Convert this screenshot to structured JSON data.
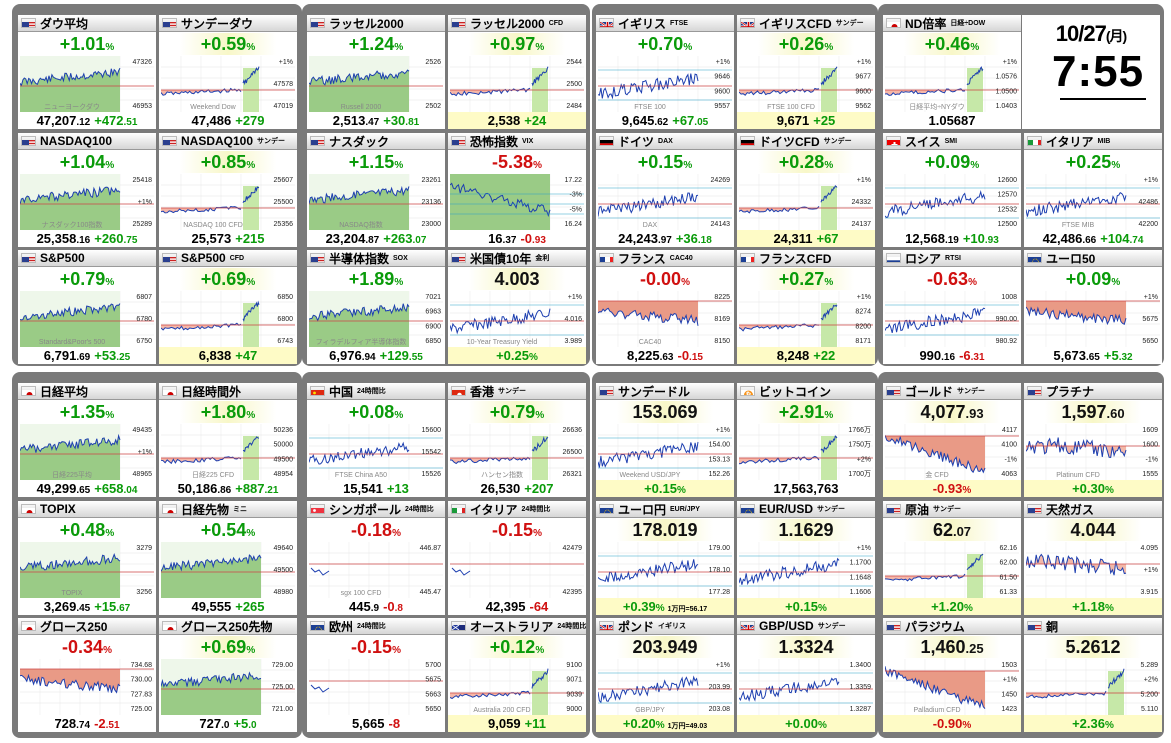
{
  "clock": {
    "date": "10/27",
    "dow": "(月)",
    "time": "7:55"
  },
  "tiles": [
    {
      "name": "ダウ平均",
      "flag": "us",
      "change": "+1.01",
      "unit": "%",
      "trend": "up",
      "ticks": [
        "47326",
        "46953"
      ],
      "wm": "ニューヨークダウ",
      "price": "47,207",
      "dec": ".12",
      "chg": "+472",
      "chgdec": ".51",
      "chgdir": "u"
    },
    {
      "name": "サンデーダウ",
      "flag": "us",
      "change": "+0.59",
      "unit": "%",
      "trend": "up",
      "hl": true,
      "style": "sunday",
      "ticks": [
        "+1%",
        "47578",
        "47019"
      ],
      "wm": "Weekend Dow",
      "price": "47,486",
      "dec": "",
      "chg": "+279",
      "chgdec": "",
      "chgdir": "u"
    },
    {
      "name": "ラッセル2000",
      "flag": "us",
      "change": "+1.24",
      "unit": "%",
      "trend": "up",
      "ticks": [
        "2526",
        "2502"
      ],
      "wm": "Russell 2000",
      "price": "2,513",
      "dec": ".47",
      "chg": "+30",
      "chgdec": ".81",
      "chgdir": "u"
    },
    {
      "name": "ラッセル2000",
      "sub": "CFD",
      "flag": "us",
      "change": "+0.97",
      "unit": "%",
      "trend": "up",
      "hl": true,
      "style": "cfdup",
      "ticks": [
        "2544",
        "2500",
        "2484"
      ],
      "wm": "",
      "price": "2,538",
      "dec": "",
      "chg": "+24",
      "chgdec": "",
      "chgdir": "u",
      "footyl": true
    },
    {
      "name": "イギリス",
      "sub": "FTSE",
      "flag": "uk",
      "change": "+0.70",
      "unit": "%",
      "trend": "up",
      "style": "line",
      "ticks": [
        "+1%",
        "9646",
        "9600",
        "9557"
      ],
      "wm": "FTSE 100",
      "price": "9,645",
      "dec": ".62",
      "chg": "+67",
      "chgdec": ".05",
      "chgdir": "u"
    },
    {
      "name": "イギリスCFD",
      "sub": "サンデー",
      "flag": "uk",
      "change": "+0.26",
      "unit": "%",
      "trend": "up",
      "hl": true,
      "style": "sunday",
      "ticks": [
        "+1%",
        "9677",
        "9600",
        "9562"
      ],
      "wm": "FTSE 100 CFD",
      "price": "9,671",
      "dec": "",
      "chg": "+25",
      "chgdec": "",
      "chgdir": "u",
      "footyl": true
    },
    {
      "name": "ND倍率",
      "sub": "日経÷DOW",
      "flag": "jp",
      "change": "+0.46",
      "unit": "%",
      "trend": "up",
      "hl": true,
      "style": "sunday",
      "ticks": [
        "+1%",
        "1.0576",
        "1.0500",
        "1.0403"
      ],
      "wm": "日経平均÷NYダウ",
      "price": "1.05687",
      "dec": "",
      "chg": "",
      "chgdec": "",
      "chgdir": "u"
    },
    {
      "name": "NASDAQ100",
      "flag": "us",
      "change": "+1.04",
      "unit": "%",
      "trend": "up",
      "ticks": [
        "25418",
        "+1%",
        "25289"
      ],
      "wm": "ナスダック100指数",
      "price": "25,358",
      "dec": ".16",
      "chg": "+260",
      "chgdec": ".75",
      "chgdir": "u"
    },
    {
      "name": "NASDAQ100",
      "sub": "サンデー",
      "flag": "us",
      "change": "+0.85",
      "unit": "%",
      "trend": "up",
      "hl": true,
      "style": "sunday",
      "ticks": [
        "25607",
        "25500",
        "25356"
      ],
      "wm": "NASDAQ 100 CFD",
      "price": "25,573",
      "dec": "",
      "chg": "+215",
      "chgdec": "",
      "chgdir": "u"
    },
    {
      "name": "ナスダック",
      "flag": "us",
      "change": "+1.15",
      "unit": "%",
      "trend": "up",
      "ticks": [
        "23261",
        "23136",
        "23000"
      ],
      "wm": "NASDAQ指数",
      "price": "23,204",
      "dec": ".87",
      "chg": "+263",
      "chgdec": ".07",
      "chgdir": "u"
    },
    {
      "name": "恐怖指数",
      "sub": "VIX",
      "flag": "us",
      "change": "-5.38",
      "unit": "%",
      "trend": "dn",
      "style": "vix",
      "ticks": [
        "17.22",
        "-3%",
        "-5%",
        "16.24"
      ],
      "wm": "",
      "price": "16",
      "dec": ".37",
      "chg": "-0",
      "chgdec": ".93",
      "chgdir": "d"
    },
    {
      "name": "ドイツ",
      "sub": "DAX",
      "flag": "de",
      "change": "+0.15",
      "unit": "%",
      "trend": "up",
      "style": "line",
      "ticks": [
        "24269",
        "24143"
      ],
      "wm": "DAX",
      "price": "24,243",
      "dec": ".97",
      "chg": "+36",
      "chgdec": ".18",
      "chgdir": "u"
    },
    {
      "name": "ドイツCFD",
      "sub": "サンデー",
      "flag": "de",
      "change": "+0.28",
      "unit": "%",
      "trend": "up",
      "hl": true,
      "style": "sunday",
      "ticks": [
        "+1%",
        "24332",
        "24137"
      ],
      "wm": "",
      "price": "24,311",
      "dec": "",
      "chg": "+67",
      "chgdec": "",
      "chgdir": "u",
      "footyl": true
    },
    {
      "name": "スイス",
      "sub": "SMI",
      "flag": "ch",
      "change": "+0.09",
      "unit": "%",
      "trend": "up",
      "style": "line",
      "ticks": [
        "12600",
        "12570",
        "12532",
        "12500"
      ],
      "wm": "",
      "price": "12,568",
      "dec": ".19",
      "chg": "+10",
      "chgdec": ".93",
      "chgdir": "u"
    },
    {
      "name": "イタリア",
      "sub": "MIB",
      "flag": "it",
      "change": "+0.25",
      "unit": "%",
      "trend": "up",
      "style": "line",
      "ticks": [
        "+1%",
        "42486",
        "42200"
      ],
      "wm": "FTSE MIB",
      "price": "42,486",
      "dec": ".66",
      "chg": "+104",
      "chgdec": ".74",
      "chgdir": "u"
    },
    {
      "name": "S&P500",
      "flag": "us",
      "change": "+0.79",
      "unit": "%",
      "trend": "up",
      "ticks": [
        "6807",
        "6780",
        "6750"
      ],
      "wm": "Standard&Poor's 500",
      "price": "6,791",
      "dec": ".69",
      "chg": "+53",
      "chgdec": ".25",
      "chgdir": "u"
    },
    {
      "name": "S&P500",
      "sub": "CFD",
      "flag": "us",
      "change": "+0.69",
      "unit": "%",
      "trend": "up",
      "hl": true,
      "style": "cfdup",
      "ticks": [
        "6850",
        "6800",
        "6743"
      ],
      "wm": "",
      "price": "6,838",
      "dec": "",
      "chg": "+47",
      "chgdec": "",
      "chgdir": "u",
      "footyl": true
    },
    {
      "name": "半導体指数",
      "sub": "SOX",
      "flag": "us",
      "change": "+1.89",
      "unit": "%",
      "trend": "up",
      "ticks": [
        "7021",
        "6963",
        "6900",
        "6850"
      ],
      "wm": "フィラデルフィア半導体指数",
      "price": "6,976",
      "dec": ".94",
      "chg": "+129",
      "chgdec": ".55",
      "chgdir": "u"
    },
    {
      "name": "米国債10年",
      "sub": "金利",
      "flag": "us",
      "change": "4.003",
      "unit": "",
      "trend": "bk",
      "hl": true,
      "style": "line",
      "ticks": [
        "+1%",
        "4.016",
        "3.989"
      ],
      "wm": "10-Year Treasury Yield",
      "price": "+0.25",
      "dec": "%",
      "chg": "",
      "chgdec": "",
      "chgdir": "u",
      "footyl": true,
      "pricecolor": "u"
    },
    {
      "name": "フランス",
      "sub": "CAC40",
      "flag": "fr",
      "change": "-0.00",
      "unit": "%",
      "trend": "dn",
      "style": "down",
      "ticks": [
        "8225",
        "8169",
        "8150"
      ],
      "wm": "CAC40",
      "price": "8,225",
      "dec": ".63",
      "chg": "-0",
      "chgdec": ".15",
      "chgdir": "d"
    },
    {
      "name": "フランスCFD",
      "flag": "fr",
      "change": "+0.27",
      "unit": "%",
      "trend": "up",
      "hl": true,
      "style": "sunday",
      "ticks": [
        "+1%",
        "8274",
        "8200",
        "8171"
      ],
      "wm": "",
      "price": "8,248",
      "dec": "",
      "chg": "+22",
      "chgdec": "",
      "chgdir": "u",
      "footyl": true
    },
    {
      "name": "ロシア",
      "sub": "RTSI",
      "flag": "ru",
      "change": "-0.63",
      "unit": "%",
      "trend": "dn",
      "style": "line",
      "ticks": [
        "1008",
        "990.00",
        "980.92"
      ],
      "wm": "",
      "price": "990",
      "dec": ".16",
      "chg": "-6",
      "chgdec": ".31",
      "chgdir": "d"
    },
    {
      "name": "ユーロ50",
      "flag": "eu",
      "change": "+0.09",
      "unit": "%",
      "trend": "up",
      "style": "down",
      "ticks": [
        "+1%",
        "5675",
        "5650"
      ],
      "wm": "",
      "price": "5,673",
      "dec": ".65",
      "chg": "+5",
      "chgdec": ".32",
      "chgdir": "u"
    },
    {
      "name": "日経平均",
      "flag": "jp",
      "change": "+1.35",
      "unit": "%",
      "trend": "up",
      "ticks": [
        "49435",
        "+1%",
        "48965"
      ],
      "wm": "日経225平均",
      "price": "49,299",
      "dec": ".65",
      "chg": "+658",
      "chgdec": ".04",
      "chgdir": "u"
    },
    {
      "name": "日経時間外",
      "flag": "jp",
      "change": "+1.80",
      "unit": "%",
      "trend": "up",
      "hl": true,
      "style": "sunday",
      "ticks": [
        "50236",
        "50000",
        "49500",
        "48954"
      ],
      "wm": "日経225 CFD",
      "price": "50,186",
      "dec": ".86",
      "chg": "+887",
      "chgdec": ".21",
      "chgdir": "u"
    },
    {
      "name": "中国",
      "sub": "24時間比",
      "flag": "cn",
      "change": "+0.08",
      "unit": "%",
      "trend": "up",
      "style": "line",
      "ticks": [
        "15600",
        "15542",
        "15526"
      ],
      "wm": "FTSE China A50",
      "price": "15,541",
      "dec": "",
      "chg": "+13",
      "chgdec": "",
      "chgdir": "u"
    },
    {
      "name": "香港",
      "sub": "サンデー",
      "flag": "hk",
      "change": "+0.79",
      "unit": "%",
      "trend": "up",
      "hl": true,
      "style": "sunday",
      "ticks": [
        "26636",
        "26500",
        "26321"
      ],
      "wm": "ハンセン指数",
      "price": "26,530",
      "dec": "",
      "chg": "+207",
      "chgdec": "",
      "chgdir": "u"
    },
    {
      "name": "サンデードル",
      "flag": "us",
      "change": "153.069",
      "unit": "",
      "trend": "bk",
      "hl": true,
      "style": "line",
      "ticks": [
        "+1%",
        "154.00",
        "153.13",
        "152.26"
      ],
      "wm": "Weekend USD/JPY",
      "price": "+0.15",
      "dec": "%",
      "chg": "",
      "chgdec": "",
      "chgdir": "u",
      "footyl": true,
      "pricecolor": "u"
    },
    {
      "name": "ビットコイン",
      "flag": "btc",
      "change": "+2.91",
      "unit": "%",
      "trend": "up",
      "hl": true,
      "style": "sunday",
      "ticks": [
        "1766万",
        "1750万",
        "+2%",
        "1700万"
      ],
      "wm": "",
      "price": "17,563,763",
      "dec": "",
      "chg": "",
      "chgdec": "",
      "chgdir": "u"
    },
    {
      "name": "ゴールド",
      "sub": "サンデー",
      "flag": "us",
      "change": "4,077",
      "dec2": ".93",
      "unit": "",
      "trend": "bk",
      "hl": true,
      "style": "gold",
      "ticks": [
        "4117",
        "4100",
        "-1%",
        "4063"
      ],
      "wm": "金 CFD",
      "price": "-0.93",
      "dec": "%",
      "chg": "",
      "chgdec": "",
      "chgdir": "d",
      "footyl": true,
      "pricecolor": "d"
    },
    {
      "name": "プラチナ",
      "flag": "us",
      "change": "1,597",
      "dec2": ".60",
      "unit": "",
      "trend": "bk",
      "hl": true,
      "style": "plat",
      "ticks": [
        "1609",
        "1600",
        "-1%",
        "1555"
      ],
      "wm": "Platinum CFD",
      "price": "+0.30",
      "dec": "%",
      "chg": "",
      "chgdec": "",
      "chgdir": "u",
      "footyl": true,
      "pricecolor": "u"
    },
    {
      "name": "TOPIX",
      "flag": "jp",
      "change": "+0.48",
      "unit": "%",
      "trend": "up",
      "ticks": [
        "3279",
        "3256"
      ],
      "wm": "TOPIX",
      "price": "3,269",
      "dec": ".45",
      "chg": "+15",
      "chgdec": ".67",
      "chgdir": "u"
    },
    {
      "name": "日経先物",
      "sub": "ミニ",
      "flag": "jp",
      "change": "+0.54",
      "unit": "%",
      "trend": "up",
      "ticks": [
        "49640",
        "49500",
        "48980"
      ],
      "wm": "",
      "price": "49,555",
      "dec": "",
      "chg": "+265",
      "chgdec": "",
      "chgdir": "u"
    },
    {
      "name": "シンガポール",
      "sub": "24時間比",
      "flag": "sg",
      "change": "-0.18",
      "unit": "%",
      "trend": "dn",
      "style": "flat",
      "ticks": [
        "446.87",
        "445.47"
      ],
      "wm": "sgx 100 CFD",
      "price": "445",
      "dec": ".9",
      "chg": "-0",
      "chgdec": ".8",
      "chgdir": "d"
    },
    {
      "name": "イタリア",
      "sub": "24時間比",
      "flag": "it",
      "change": "-0.15",
      "unit": "%",
      "trend": "dn",
      "style": "flat",
      "ticks": [
        "42479",
        "42395"
      ],
      "wm": "",
      "price": "42,395",
      "dec": "",
      "chg": "-64",
      "chgdec": "",
      "chgdir": "d"
    },
    {
      "name": "ユーロ円",
      "sub": "EUR/JPY",
      "flag": "eu",
      "change": "178.019",
      "unit": "",
      "trend": "bk",
      "hl": true,
      "style": "line",
      "ticks": [
        "179.00",
        "178.10",
        "177.28"
      ],
      "wm": "",
      "price": "+0.39",
      "dec": "%",
      "chg": "",
      "chgdec": "",
      "chgdir": "u",
      "footyl": true,
      "pricecolor": "u",
      "extra": "1万円=56.17"
    },
    {
      "name": "EUR/USD",
      "sub": "サンデー",
      "flag": "eu",
      "change": "1.1629",
      "unit": "",
      "trend": "bk",
      "hl": true,
      "style": "line",
      "ticks": [
        "+1%",
        "1.1700",
        "1.1648",
        "1.1606"
      ],
      "wm": "",
      "price": "+0.15",
      "dec": "%",
      "chg": "",
      "chgdec": "",
      "chgdir": "u",
      "footyl": true,
      "pricecolor": "u"
    },
    {
      "name": "原油",
      "sub": "サンデー",
      "flag": "us",
      "change": "62",
      "dec2": ".07",
      "unit": "",
      "trend": "bk",
      "hl": true,
      "style": "sunday",
      "ticks": [
        "62.16",
        "62.00",
        "61.50",
        "61.33"
      ],
      "wm": "",
      "price": "+1.20",
      "dec": "%",
      "chg": "",
      "chgdec": "",
      "chgdir": "u",
      "footyl": true,
      "pricecolor": "u"
    },
    {
      "name": "天然ガス",
      "flag": "us",
      "change": "4.044",
      "unit": "",
      "trend": "bk",
      "hl": true,
      "style": "plat",
      "ticks": [
        "4.095",
        "+1%",
        "3.915"
      ],
      "wm": "",
      "price": "+1.18",
      "dec": "%",
      "chg": "",
      "chgdec": "",
      "chgdir": "u",
      "footyl": true,
      "pricecolor": "u"
    },
    {
      "name": "グロース250",
      "flag": "jp",
      "change": "-0.34",
      "unit": "%",
      "trend": "dn",
      "style": "down",
      "ticks": [
        "734.68",
        "730.00",
        "727.83",
        "725.00"
      ],
      "wm": "",
      "price": "728",
      "dec": ".74",
      "chg": "-2",
      "chgdec": ".51",
      "chgdir": "d"
    },
    {
      "name": "グロース250先物",
      "flag": "jp",
      "change": "+0.69",
      "unit": "%",
      "trend": "up",
      "hl": true,
      "ticks": [
        "729.00",
        "725.00",
        "721.00"
      ],
      "wm": "",
      "price": "727",
      "dec": ".0",
      "chg": "+5",
      "chgdec": ".0",
      "chgdir": "u"
    },
    {
      "name": "欧州",
      "sub": "24時間比",
      "flag": "eu",
      "change": "-0.15",
      "unit": "%",
      "trend": "dn",
      "style": "flat",
      "ticks": [
        "5700",
        "5675",
        "5663",
        "5650"
      ],
      "wm": "",
      "price": "5,665",
      "dec": "",
      "chg": "-8",
      "chgdec": "",
      "chgdir": "d"
    },
    {
      "name": "オーストラリア",
      "sub": "24時間比",
      "flag": "au",
      "change": "+0.12",
      "unit": "%",
      "trend": "up",
      "hl": true,
      "style": "sunday",
      "ticks": [
        "9100",
        "9071",
        "9039",
        "9000"
      ],
      "wm": "Australia 200 CFD",
      "price": "9,059",
      "dec": "",
      "chg": "+11",
      "chgdec": "",
      "chgdir": "u",
      "footyl": true
    },
    {
      "name": "ポンド",
      "sub": "イギリス",
      "flag": "uk",
      "change": "203.949",
      "unit": "",
      "trend": "bk",
      "hl": true,
      "style": "line",
      "ticks": [
        "+1%",
        "203.99",
        "203.08"
      ],
      "wm": "GBP/JPY",
      "price": "+0.20",
      "dec": "%",
      "chg": "",
      "chgdec": "",
      "chgdir": "u",
      "footyl": true,
      "pricecolor": "u",
      "extra": "1万円=49.03"
    },
    {
      "name": "GBP/USD",
      "sub": "サンデー",
      "flag": "uk",
      "change": "1.3324",
      "unit": "",
      "trend": "bk",
      "hl": true,
      "style": "line",
      "ticks": [
        "1.3400",
        "1.3359",
        "1.3287"
      ],
      "wm": "",
      "price": "+0.00",
      "dec": "%",
      "chg": "",
      "chgdec": "",
      "chgdir": "u",
      "footyl": true,
      "pricecolor": "u"
    },
    {
      "name": "パラジウム",
      "flag": "us",
      "change": "1,460",
      "dec2": ".25",
      "unit": "",
      "trend": "bk",
      "hl": true,
      "style": "gold",
      "ticks": [
        "1503",
        "+1%",
        "1450",
        "1423"
      ],
      "wm": "Palladium CFD",
      "price": "-0.90",
      "dec": "%",
      "chg": "",
      "chgdec": "",
      "chgdir": "d",
      "footyl": true,
      "pricecolor": "d"
    },
    {
      "name": "銅",
      "flag": "us",
      "change": "5.2612",
      "unit": "",
      "trend": "bk",
      "hl": true,
      "style": "sunday",
      "ticks": [
        "5.289",
        "+2%",
        "5.200",
        "5.110"
      ],
      "wm": "",
      "price": "+2.36",
      "dec": "%",
      "chg": "",
      "chgdec": "",
      "chgdir": "u",
      "footyl": true,
      "pricecolor": "u"
    }
  ]
}
